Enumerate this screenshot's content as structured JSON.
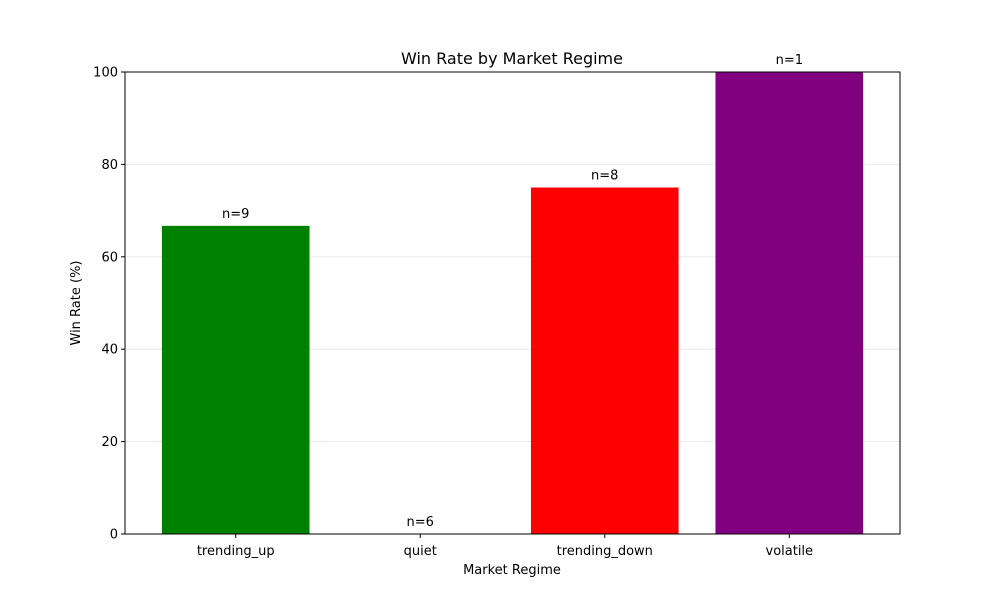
{
  "chart_data": {
    "type": "bar",
    "title": "Win Rate by Market Regime",
    "xlabel": "Market Regime",
    "ylabel": "Win Rate (%)",
    "categories": [
      "trending_up",
      "quiet",
      "trending_down",
      "volatile"
    ],
    "values": [
      66.7,
      0,
      75.0,
      100.0
    ],
    "bar_labels": [
      "n=9",
      "n=6",
      "n=8",
      "n=1"
    ],
    "colors": [
      "#008000",
      "#ffffff",
      "#ff0000",
      "#800080"
    ],
    "ylim": [
      0,
      100
    ],
    "yticks": [
      0,
      20,
      40,
      60,
      80,
      100
    ],
    "grid": {
      "y": true,
      "x": false
    },
    "legend": "none"
  }
}
